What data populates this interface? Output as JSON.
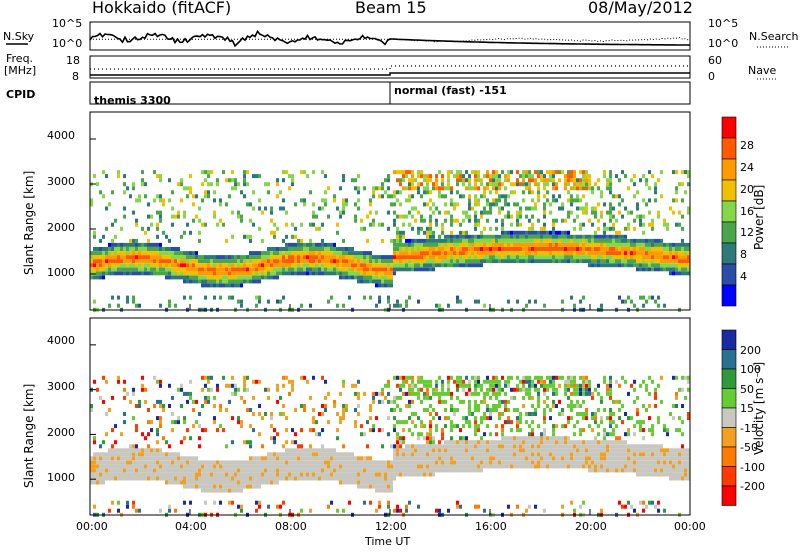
{
  "header": {
    "station": "Hokkaido (fitACF)",
    "beam": "Beam 15",
    "date": "08/May/2012"
  },
  "noise_panel": {
    "left_label": "N.Sky",
    "right_label": "N.Search",
    "left_ticks": [
      "10^5",
      "10^0"
    ],
    "right_ticks": [
      "10^5",
      "10^0"
    ]
  },
  "freq_panel": {
    "left_label_1": "Freq.",
    "left_label_2": "[MHz]",
    "right_label": "Nave",
    "left_ticks": [
      "18",
      "8"
    ],
    "right_ticks": [
      "60",
      "0"
    ]
  },
  "cpid_panel": {
    "label": "CPID",
    "segments": [
      {
        "start_hour": 0,
        "end_hour": 12,
        "text": "themis 3300"
      },
      {
        "start_hour": 12,
        "end_hour": 24,
        "text": "normal (fast) -151"
      }
    ]
  },
  "x_axis": {
    "label": "Time UT",
    "ticks": [
      "00:00",
      "04:00",
      "08:00",
      "12:00",
      "16:00",
      "20:00",
      "00:00"
    ],
    "tick_hours": [
      0,
      4,
      8,
      12,
      16,
      20,
      24
    ]
  },
  "power_panel": {
    "ylabel": "Slant Range [km]",
    "yticks": [
      "4000",
      "3000",
      "2000",
      "1000"
    ],
    "ytick_values": [
      4000,
      3000,
      2000,
      1000
    ],
    "colorbar_label": "Power [dB]",
    "colorbar_ticks": [
      "28",
      "24",
      "20",
      "16",
      "12",
      "8",
      "4"
    ],
    "colorbar_colors": [
      "#ff0000",
      "#ff5a00",
      "#ff9a00",
      "#f0c000",
      "#86d64a",
      "#4aa64a",
      "#2e7a7a",
      "#2a4ea8",
      "#0000ff"
    ]
  },
  "velocity_panel": {
    "ylabel": "Slant Range [km]",
    "yticks": [
      "4000",
      "3000",
      "2000",
      "1000"
    ],
    "ytick_values": [
      4000,
      3000,
      2000,
      1000
    ],
    "colorbar_label": "Velocity [m s⁻¹]",
    "colorbar_ticks": [
      "200",
      "100",
      "50",
      "15",
      "-15",
      "-50",
      "-100",
      "-200"
    ],
    "colorbar_colors": [
      "#1a2aa0",
      "#2a7090",
      "#2e9a3a",
      "#66cc33",
      "#c8c8c0",
      "#f2a020",
      "#ff7a00",
      "#ff3a00",
      "#ff0000"
    ]
  },
  "chart_data": {
    "type": "heatmap",
    "title": "Hokkaido (fitACF) Beam 15 08/May/2012",
    "xlabel": "Time UT",
    "ylabel": "Slant Range [km]",
    "xlim_hours": [
      0,
      24
    ],
    "ylim_km": [
      200,
      4600
    ],
    "panels": [
      {
        "name": "Power [dB]",
        "range": [
          0,
          30
        ],
        "dominant_band_km": [
          900,
          1600
        ],
        "band_peak_db": 30,
        "secondary_echo_km": [
          2000,
          3400
        ]
      },
      {
        "name": "Velocity [m s^-1]",
        "range": [
          -200,
          200
        ],
        "dominant_value": 0,
        "eastward_echo_km": [
          2000,
          3400
        ]
      }
    ]
  }
}
